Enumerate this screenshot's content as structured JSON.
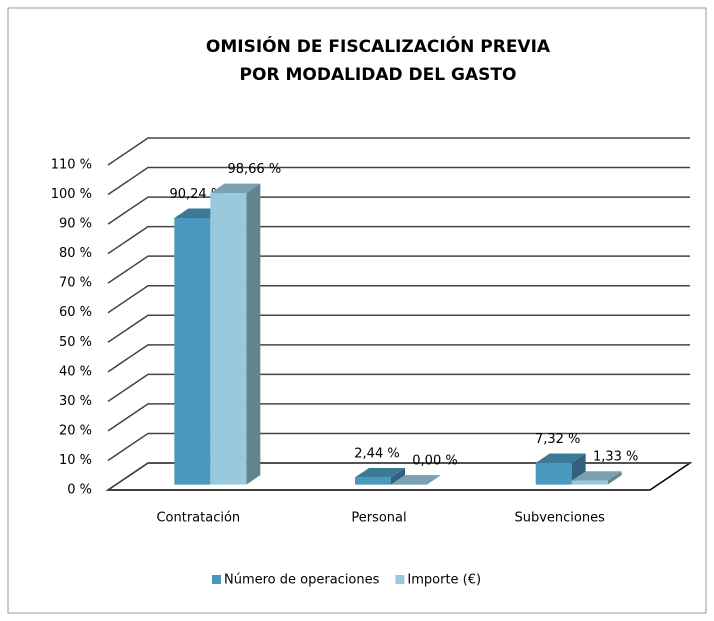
{
  "chart_data": {
    "type": "bar3d",
    "title": [
      "OMISIÓN DE FISCALIZACIÓN PREVIA",
      "POR MODALIDAD DEL GASTO"
    ],
    "categories": [
      "Contratación",
      "Personal",
      "Subvenciones"
    ],
    "series": [
      {
        "name": "Número de operaciones",
        "color": "#4a98bd",
        "values": [
          90.24,
          2.44,
          7.32
        ],
        "value_labels": [
          "90,24 %",
          "2,44 %",
          "7,32 %"
        ]
      },
      {
        "name": "Importe (€)",
        "color": "#99c9dc",
        "values": [
          98.66,
          0.0,
          1.33
        ],
        "value_labels": [
          "98,66 %",
          "0,00 %",
          "1,33 %"
        ]
      }
    ],
    "ylim": [
      0,
      110
    ],
    "yticks": [
      {
        "value": 0,
        "label": "0 %"
      },
      {
        "value": 10,
        "label": "10 %"
      },
      {
        "value": 20,
        "label": "20 %"
      },
      {
        "value": 30,
        "label": "30 %"
      },
      {
        "value": 40,
        "label": "40 %"
      },
      {
        "value": 50,
        "label": "50 %"
      },
      {
        "value": 60,
        "label": "60 %"
      },
      {
        "value": 70,
        "label": "70 %"
      },
      {
        "value": 80,
        "label": "80 %"
      },
      {
        "value": 90,
        "label": "90 %"
      },
      {
        "value": 100,
        "label": "100 %"
      },
      {
        "value": 110,
        "label": "110 %"
      }
    ],
    "grid": true,
    "legend": "bottom"
  }
}
